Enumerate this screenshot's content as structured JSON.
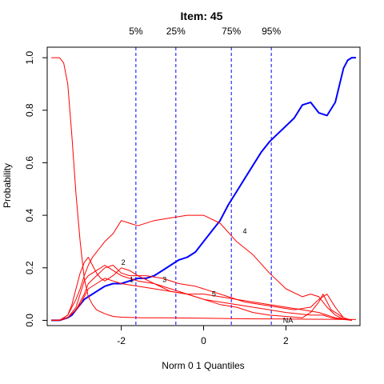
{
  "chart_data": {
    "type": "line",
    "title": "Item:  45",
    "xlabel": "Norm 0 1 Quantiles",
    "ylabel": "Probability",
    "xlim": [
      -3.8,
      3.8
    ],
    "ylim": [
      -0.02,
      1.04
    ],
    "xticks": [
      -2,
      0,
      2
    ],
    "xtick_labels": [
      "-2",
      "0",
      "2"
    ],
    "yticks": [
      0.0,
      0.2,
      0.4,
      0.6,
      0.8,
      1.0
    ],
    "ytick_labels": [
      "0.0",
      "0.2",
      "0.4",
      "0.6",
      "0.8",
      "1.0"
    ],
    "quantiles": [
      {
        "label": "5%",
        "x": -1.645
      },
      {
        "label": "25%",
        "x": -0.674
      },
      {
        "label": "75%",
        "x": 0.674
      },
      {
        "label": "95%",
        "x": 1.645
      }
    ],
    "quantile_color": "#0000ff",
    "key_color": "#0000ff",
    "option_color": "#ff0000",
    "series": [
      {
        "key": true,
        "x": [
          -3.7,
          -3.5,
          -3.4,
          -3.3,
          -3.2,
          -3.1,
          -3.0,
          -2.9,
          -2.8,
          -2.6,
          -2.5,
          -2.4,
          -2.2,
          -2.0,
          -1.8,
          -1.6,
          -1.4,
          -1.2,
          -1.0,
          -0.8,
          -0.6,
          -0.4,
          -0.2,
          0.0,
          0.2,
          0.4,
          0.6,
          0.8,
          1.0,
          1.2,
          1.4,
          1.6,
          1.8,
          2.0,
          2.2,
          2.4,
          2.6,
          2.8,
          3.0,
          3.2,
          3.4,
          3.5,
          3.6,
          3.7
        ],
        "y": [
          0.0,
          0.0,
          0.005,
          0.01,
          0.02,
          0.04,
          0.06,
          0.08,
          0.09,
          0.11,
          0.12,
          0.13,
          0.14,
          0.14,
          0.15,
          0.16,
          0.16,
          0.17,
          0.19,
          0.21,
          0.23,
          0.24,
          0.26,
          0.3,
          0.34,
          0.38,
          0.44,
          0.49,
          0.54,
          0.59,
          0.64,
          0.68,
          0.71,
          0.74,
          0.77,
          0.82,
          0.83,
          0.79,
          0.78,
          0.83,
          0.96,
          0.99,
          1.0,
          1.0
        ]
      },
      {
        "label": "",
        "x": [
          -3.7,
          -3.5,
          -3.4,
          -3.3,
          -3.2,
          -3.1,
          -3.0,
          -2.9,
          -2.8,
          -2.7,
          -2.6,
          -2.4,
          -2.2,
          -2.0,
          -1.5,
          -1.0,
          0.0,
          1.0,
          2.0,
          3.0,
          3.7
        ],
        "y": [
          1.0,
          1.0,
          0.98,
          0.9,
          0.7,
          0.48,
          0.3,
          0.16,
          0.09,
          0.06,
          0.04,
          0.025,
          0.015,
          0.012,
          0.01,
          0.01,
          0.008,
          0.006,
          0.005,
          0.004,
          0.003
        ]
      },
      {
        "label": "1",
        "x": [
          -3.7,
          -3.5,
          -3.3,
          -3.1,
          -3.0,
          -2.9,
          -2.8,
          -2.7,
          -2.6,
          -2.4,
          -2.2,
          -2.0,
          -1.6,
          -1.2,
          -0.8,
          -0.4,
          0.0,
          0.4,
          0.8,
          1.2,
          1.6,
          2.0,
          2.3,
          2.6,
          2.9,
          3.1,
          3.3,
          3.6
        ],
        "y": [
          0.0,
          0.0,
          0.01,
          0.05,
          0.1,
          0.15,
          0.17,
          0.18,
          0.19,
          0.21,
          0.19,
          0.17,
          0.15,
          0.14,
          0.12,
          0.1,
          0.08,
          0.07,
          0.06,
          0.05,
          0.04,
          0.03,
          0.025,
          0.02,
          0.02,
          0.01,
          0.005,
          0.0
        ]
      },
      {
        "label": "2",
        "x": [
          -3.7,
          -3.5,
          -3.3,
          -3.2,
          -3.1,
          -3.0,
          -2.9,
          -2.8,
          -2.7,
          -2.6,
          -2.5,
          -2.4,
          -2.2,
          -2.0,
          -1.8,
          -1.6,
          -1.2,
          -0.8,
          -0.4,
          0.0,
          0.4,
          0.8,
          1.2,
          1.6,
          2.0,
          2.4,
          2.6,
          2.8,
          2.9,
          3.1,
          3.4,
          3.6
        ],
        "y": [
          0.0,
          0.0,
          0.02,
          0.06,
          0.12,
          0.18,
          0.22,
          0.24,
          0.21,
          0.18,
          0.16,
          0.15,
          0.17,
          0.2,
          0.19,
          0.17,
          0.14,
          0.11,
          0.1,
          0.08,
          0.06,
          0.05,
          0.03,
          0.02,
          0.015,
          0.01,
          0.03,
          0.07,
          0.1,
          0.04,
          0.01,
          0.0
        ]
      },
      {
        "label": "3",
        "x": [
          -3.7,
          -3.5,
          -3.3,
          -3.1,
          -3.0,
          -2.9,
          -2.8,
          -2.6,
          -2.4,
          -2.2,
          -2.0,
          -1.8,
          -1.4,
          -1.0,
          -0.6,
          -0.2,
          0.2,
          0.6,
          1.0,
          1.4,
          1.8,
          2.2,
          2.6,
          2.8,
          3.0,
          3.2,
          3.4,
          3.6
        ],
        "y": [
          0.0,
          0.0,
          0.01,
          0.04,
          0.07,
          0.1,
          0.14,
          0.17,
          0.2,
          0.21,
          0.18,
          0.17,
          0.17,
          0.16,
          0.14,
          0.13,
          0.11,
          0.09,
          0.07,
          0.06,
          0.05,
          0.04,
          0.05,
          0.08,
          0.1,
          0.05,
          0.01,
          0.0
        ]
      },
      {
        "label": "4",
        "x": [
          -3.7,
          -3.5,
          -3.3,
          -3.1,
          -3.0,
          -2.9,
          -2.8,
          -2.7,
          -2.6,
          -2.5,
          -2.4,
          -2.2,
          -2.0,
          -1.8,
          -1.6,
          -1.2,
          -0.8,
          -0.4,
          0.0,
          0.4,
          0.8,
          1.2,
          1.6,
          2.0,
          2.4,
          2.6,
          2.8,
          3.0,
          3.2,
          3.4,
          3.6
        ],
        "y": [
          0.0,
          0.0,
          0.02,
          0.08,
          0.12,
          0.17,
          0.21,
          0.24,
          0.26,
          0.28,
          0.3,
          0.33,
          0.38,
          0.37,
          0.36,
          0.38,
          0.39,
          0.4,
          0.4,
          0.37,
          0.3,
          0.25,
          0.18,
          0.12,
          0.09,
          0.1,
          0.09,
          0.05,
          0.02,
          0.005,
          0.0
        ]
      },
      {
        "label": "5",
        "x": [
          -3.7,
          -3.5,
          -3.3,
          -3.1,
          -3.0,
          -2.9,
          -2.8,
          -2.6,
          -2.4,
          -2.2,
          -2.0,
          -1.6,
          -1.2,
          -0.8,
          -0.4,
          0.0,
          0.4,
          0.8,
          1.2,
          1.6,
          2.0,
          2.4,
          2.8,
          3.0,
          3.2,
          3.4,
          3.6
        ],
        "y": [
          0.0,
          0.0,
          0.01,
          0.04,
          0.06,
          0.09,
          0.12,
          0.14,
          0.16,
          0.15,
          0.14,
          0.13,
          0.12,
          0.11,
          0.1,
          0.1,
          0.09,
          0.08,
          0.07,
          0.06,
          0.05,
          0.04,
          0.03,
          0.02,
          0.01,
          0.005,
          0.0
        ]
      }
    ],
    "curve_labels": [
      {
        "text": "1",
        "x": -1.75,
        "y": 0.155
      },
      {
        "text": "2",
        "x": -1.95,
        "y": 0.22
      },
      {
        "text": "3",
        "x": -0.95,
        "y": 0.155
      },
      {
        "text": "4",
        "x": 1.0,
        "y": 0.34
      },
      {
        "text": "5",
        "x": 0.25,
        "y": 0.1
      },
      {
        "text": "NA",
        "x": 2.05,
        "y": 0.0
      }
    ]
  }
}
